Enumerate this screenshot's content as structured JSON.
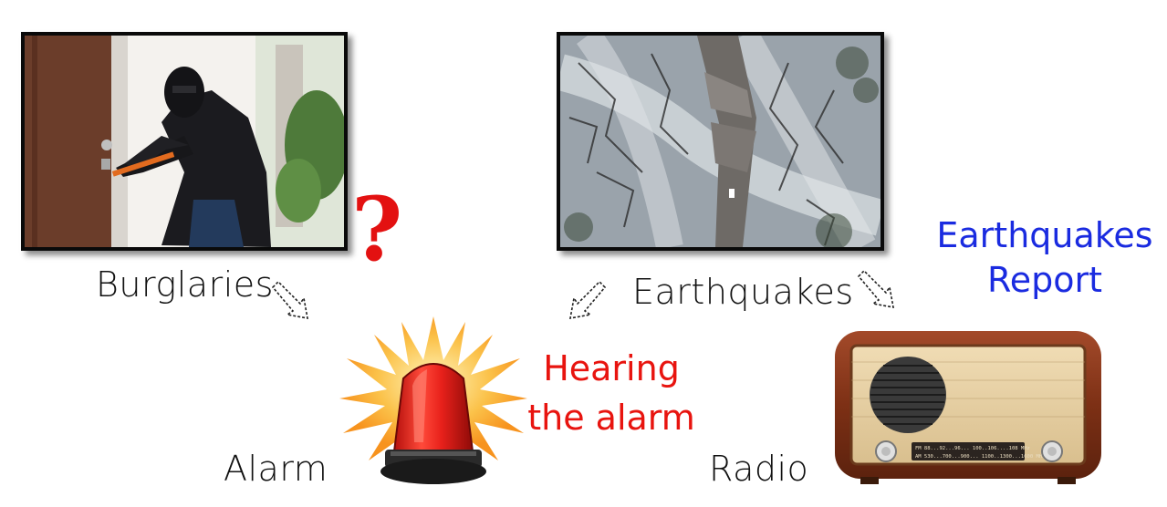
{
  "nodes": {
    "burglaries": "Burglaries",
    "earthquakes": "Earthquakes",
    "alarm": "Alarm",
    "radio": "Radio"
  },
  "evidence": {
    "hearing_line1": "Hearing",
    "hearing_line2": "the alarm",
    "report_line1": "Earthquakes",
    "report_line2": "Report"
  },
  "question_mark": "?",
  "radio_dial": {
    "fm_scale": "FM  88...92...96...  100..106....108   MHz",
    "am_scale": "AM  530...700...900... 1100..1300...1600 MHz"
  },
  "colors": {
    "evidence_red": "#e8140f",
    "evidence_blue": "#1a2be0",
    "alarm_red": "#e8211b",
    "burst_orange": "#f7931e"
  },
  "icons": [
    "burglar-photo",
    "earthquake-road-photo",
    "alarm-light-icon",
    "radio-icon",
    "dashed-arrow-icon"
  ]
}
